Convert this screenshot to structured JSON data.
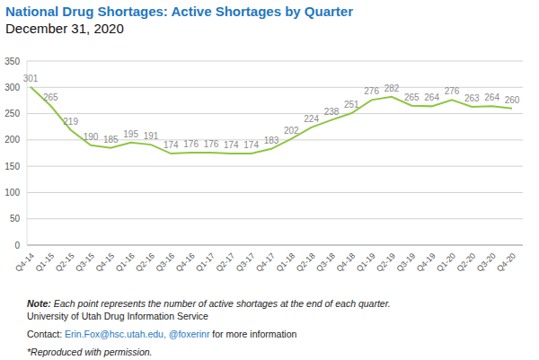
{
  "chart_data": {
    "type": "line",
    "title": "National Drug Shortages: Active Shortages by Quarter",
    "subtitle": "December 31, 2020",
    "categories": [
      "Q4-14",
      "Q1-15",
      "Q2-15",
      "Q3-15",
      "Q4-15",
      "Q1-16",
      "Q2-16",
      "Q3-16",
      "Q4-16",
      "Q1-17",
      "Q2-17",
      "Q3-17",
      "Q4-17",
      "Q1-18",
      "Q2-18",
      "Q3-18",
      "Q4-18",
      "Q1-19",
      "Q2-19",
      "Q3-19",
      "Q4-19",
      "Q1-20",
      "Q2-20",
      "Q3-20",
      "Q4-20"
    ],
    "values": [
      301,
      265,
      219,
      190,
      185,
      195,
      191,
      174,
      176,
      176,
      174,
      174,
      183,
      202,
      224,
      238,
      251,
      276,
      282,
      265,
      264,
      276,
      263,
      264,
      260
    ],
    "color": "#8dc63f",
    "ylim": [
      0,
      350
    ],
    "yticks": [
      0,
      50,
      100,
      150,
      200,
      250,
      300,
      350
    ],
    "grid": true,
    "data_labels": true,
    "annotations": {
      "note_label": "Note:",
      "note": "Each point represents the number of active shortages at the end of each quarter.",
      "source": "University of Utah Drug Information Service",
      "contact": [
        "Contact:",
        "Erin.Fox@hsc.utah.edu,",
        "@foxerinr",
        "for more information"
      ],
      "reproduced": "*Reproduced with permission."
    }
  }
}
